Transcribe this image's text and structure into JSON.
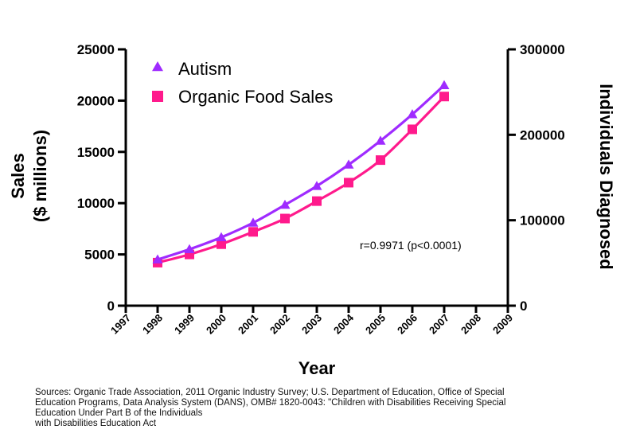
{
  "chart_data": {
    "type": "line",
    "x": [
      1998,
      1999,
      2000,
      2001,
      2002,
      2003,
      2004,
      2005,
      2006,
      2007
    ],
    "xlabel": "Year",
    "xlim": [
      1997,
      2009
    ],
    "xticks": [
      "1997",
      "1998",
      "1999",
      "2000",
      "2001",
      "2002",
      "2003",
      "2004",
      "2005",
      "2006",
      "2007",
      "2008",
      "2009"
    ],
    "ylabel_lines": [
      "Sales",
      "($ millions)"
    ],
    "ylim": [
      0,
      25000
    ],
    "yticks": [
      "0",
      "5000",
      "10000",
      "15000",
      "20000",
      "25000"
    ],
    "y2label": "Individuals Diagnosed",
    "y2lim": [
      0,
      300000
    ],
    "y2ticks": [
      "0",
      "100000",
      "200000",
      "300000"
    ],
    "series": [
      {
        "name": "Autism",
        "axis": "right",
        "marker": "triangle",
        "color": "#9f2bff",
        "values": [
          54000,
          66000,
          80000,
          97000,
          118000,
          140000,
          165000,
          193000,
          224000,
          258000
        ]
      },
      {
        "name": "Organic Food Sales",
        "axis": "left",
        "marker": "square",
        "color": "#ff1a8c",
        "values": [
          4200,
          5000,
          6000,
          7200,
          8500,
          10200,
          12000,
          14200,
          17200,
          20400
        ]
      }
    ],
    "annotation": "r=0.9971 (p<0.0001)",
    "legend_position": "top-left",
    "grid": false
  },
  "sources": {
    "line1": "Sources: Organic Trade Association,  2011 Organic Industry Survey; U.S. Department of Education, Office of Special",
    "line2": "Education Programs, Data Analysis System (DANS), OMB# 1820-0043: \"Children with Disabilities Receiving Special",
    "line3": "Education Under Part B of the Individuals",
    "line4": "with Disabilities Education Act"
  }
}
